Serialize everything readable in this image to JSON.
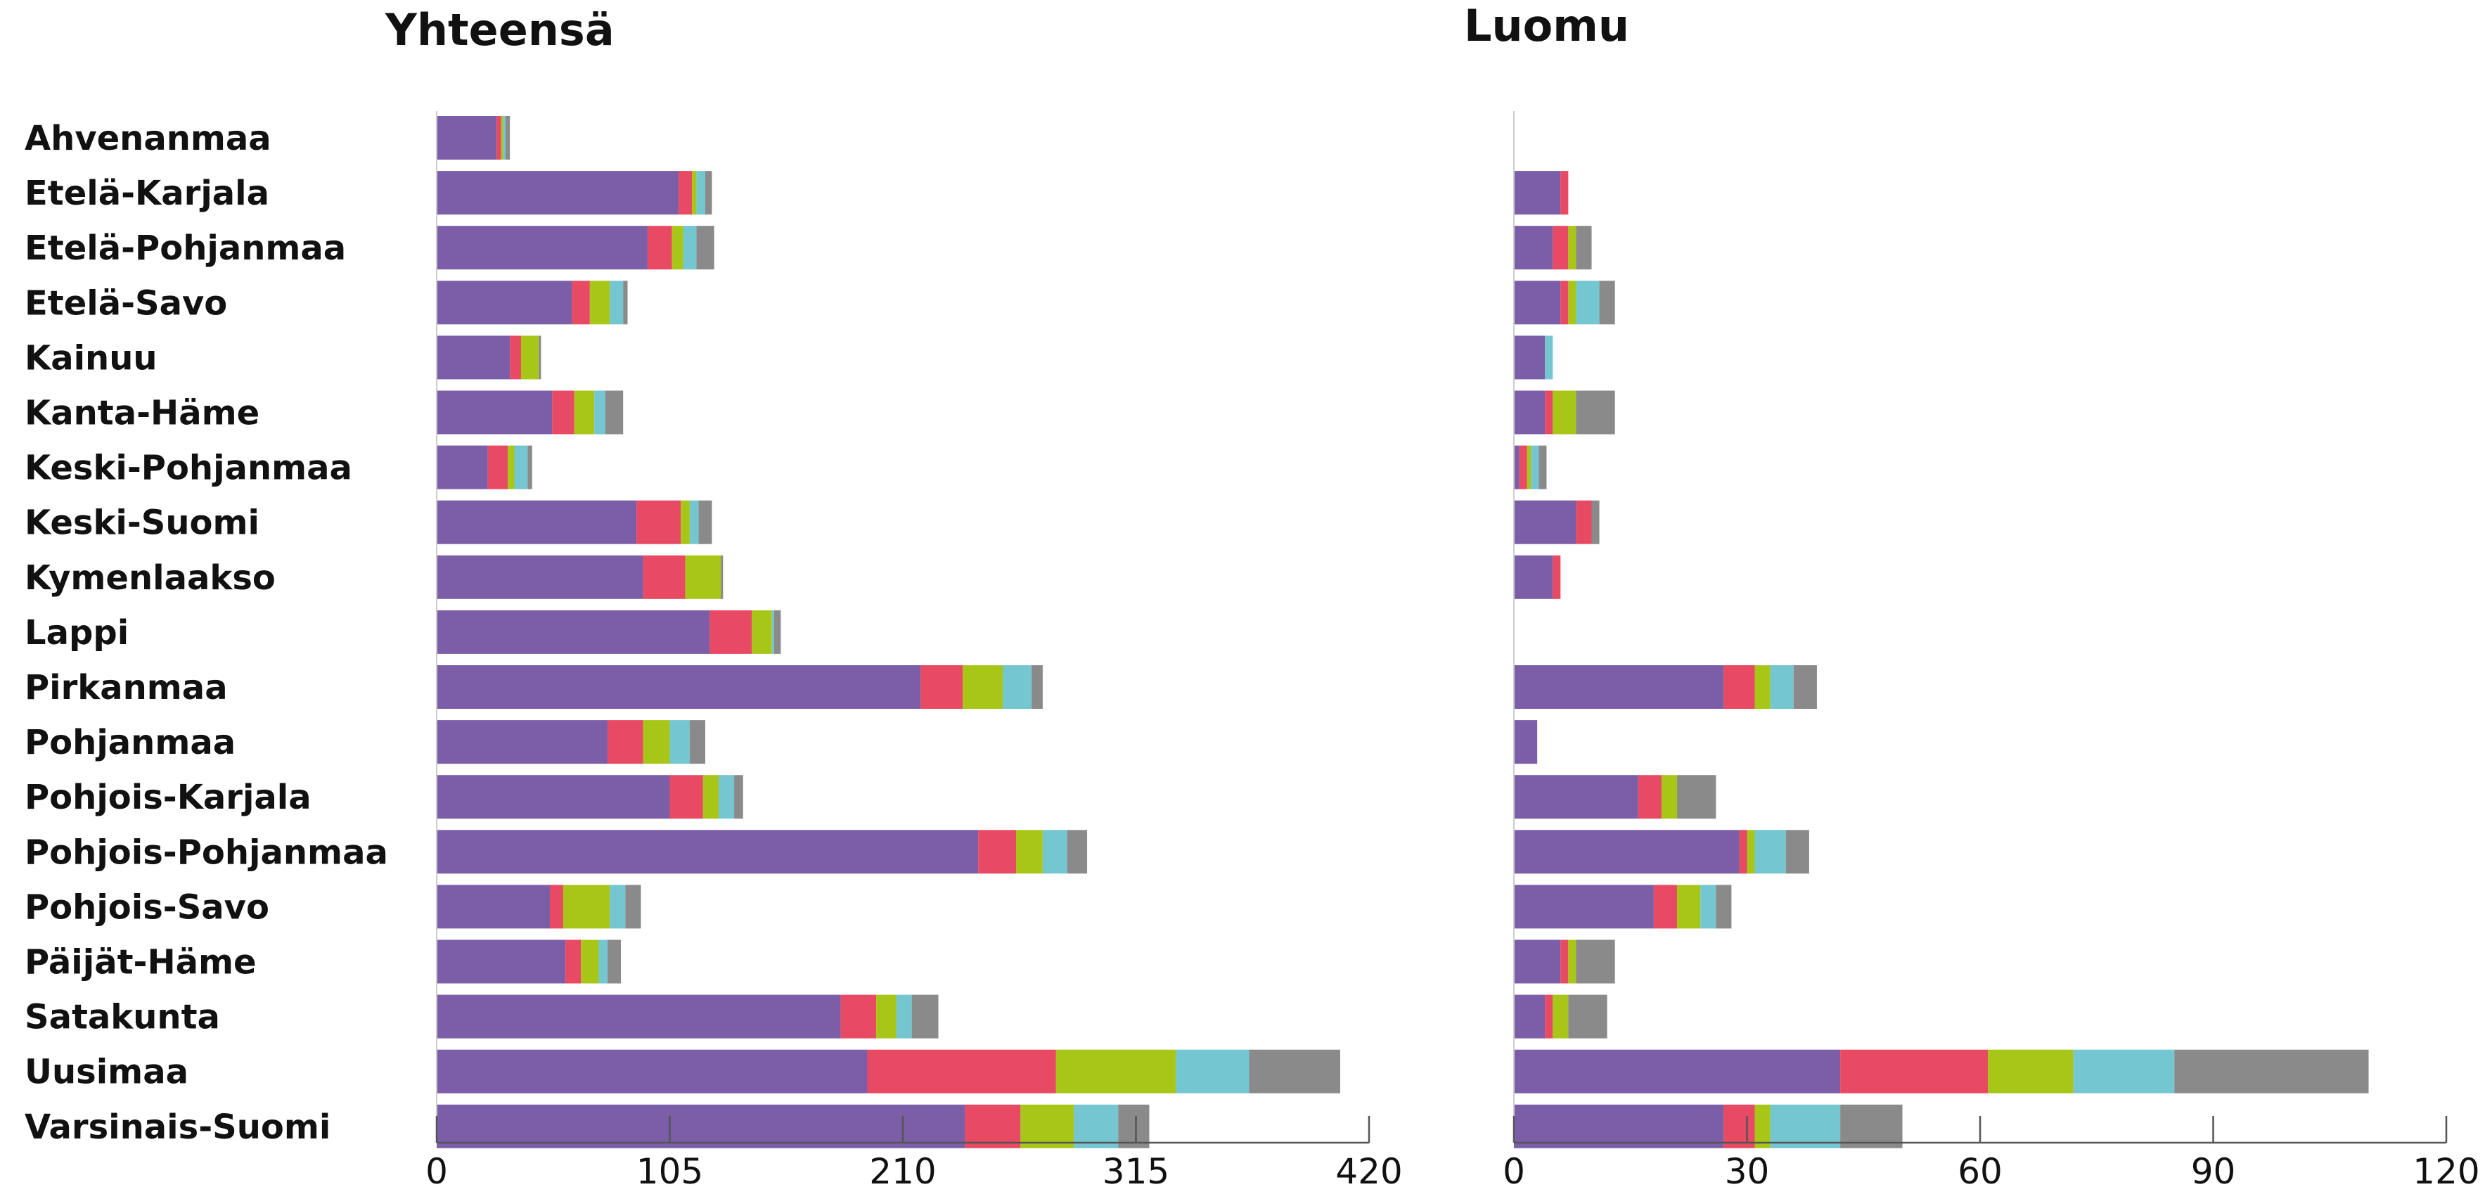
{
  "chart_data": [
    {
      "type": "bar",
      "orientation": "horizontal",
      "stacked": true,
      "title": "Yhteensä",
      "xlabel": "",
      "ylabel": "",
      "xlim": [
        0,
        420
      ],
      "xticks": [
        "0",
        "105",
        "210",
        "315",
        "420"
      ],
      "grid": false,
      "legend": "none",
      "categories": [
        "Ahvenanmaa",
        "Etelä-Karjala",
        "Etelä-Pohjanmaa",
        "Etelä-Savo",
        "Kainuu",
        "Kanta-Häme",
        "Keski-Pohjanmaa",
        "Keski-Suomi",
        "Kymenlaakso",
        "Lappi",
        "Pirkanmaa",
        "Pohjanmaa",
        "Pohjois-Karjala",
        "Pohjois-Pohjanmaa",
        "Pohjois-Savo",
        "Päijät-Häme",
        "Satakunta",
        "Uusimaa",
        "Varsinais-Suomi"
      ],
      "series": [
        {
          "color": "#7b5ea7",
          "values": [
            27,
            109,
            95,
            61,
            33,
            52,
            23,
            90,
            93,
            123,
            218,
            77,
            105,
            244,
            51,
            58,
            182,
            194,
            238
          ]
        },
        {
          "color": "#e84a63",
          "values": [
            2,
            6,
            11,
            8,
            5,
            10,
            9,
            20,
            19,
            19,
            19,
            16,
            15,
            17,
            6,
            7,
            16,
            85,
            25
          ]
        },
        {
          "color": "#a8c617",
          "values": [
            1,
            2,
            5,
            9,
            8,
            9,
            3,
            4,
            16,
            9,
            18,
            12,
            7,
            12,
            21,
            8,
            9,
            54,
            24
          ]
        },
        {
          "color": "#74c6d1",
          "values": [
            1,
            4,
            6,
            6,
            0,
            5,
            6,
            4,
            0,
            1,
            13,
            9,
            7,
            11,
            7,
            4,
            7,
            33,
            20
          ]
        },
        {
          "color": "#8a8a8a",
          "values": [
            2,
            3,
            8,
            2,
            1,
            8,
            2,
            6,
            1,
            3,
            5,
            7,
            4,
            9,
            7,
            6,
            12,
            41,
            14
          ]
        }
      ]
    },
    {
      "type": "bar",
      "orientation": "horizontal",
      "stacked": true,
      "title": "Luomu",
      "xlabel": "",
      "ylabel": "",
      "xlim": [
        0,
        120
      ],
      "xticks": [
        "0",
        "30",
        "60",
        "90",
        "120"
      ],
      "grid": false,
      "legend": "none",
      "categories": [
        "Ahvenanmaa",
        "Etelä-Karjala",
        "Etelä-Pohjanmaa",
        "Etelä-Savo",
        "Kainuu",
        "Kanta-Häme",
        "Keski-Pohjanmaa",
        "Keski-Suomi",
        "Kymenlaakso",
        "Lappi",
        "Pirkanmaa",
        "Pohjanmaa",
        "Pohjois-Karjala",
        "Pohjois-Pohjanmaa",
        "Pohjois-Savo",
        "Päijät-Häme",
        "Satakunta",
        "Uusimaa",
        "Varsinais-Suomi"
      ],
      "series": [
        {
          "color": "#7b5ea7",
          "values": [
            0,
            6,
            5,
            6,
            4,
            4,
            0.7,
            8,
            5,
            0,
            27,
            3,
            16,
            29,
            18,
            6,
            4,
            42,
            27
          ]
        },
        {
          "color": "#e84a63",
          "values": [
            0,
            1,
            2,
            1,
            0,
            1,
            1,
            2,
            1,
            0,
            4,
            0,
            3,
            1,
            3,
            1,
            1,
            19,
            4
          ]
        },
        {
          "color": "#a8c617",
          "values": [
            0,
            0,
            1,
            1,
            0,
            3,
            0.5,
            0,
            0,
            0,
            2,
            0,
            2,
            1,
            3,
            1,
            2,
            11,
            2
          ]
        },
        {
          "color": "#74c6d1",
          "values": [
            0,
            0,
            0,
            3,
            1,
            0,
            1,
            0,
            0,
            0,
            3,
            0,
            0,
            4,
            2,
            0,
            0,
            13,
            9
          ]
        },
        {
          "color": "#8a8a8a",
          "values": [
            0,
            0,
            2,
            2,
            0,
            5,
            1,
            1,
            0,
            0,
            3,
            0,
            5,
            3,
            2,
            5,
            5,
            25,
            8
          ]
        }
      ]
    }
  ]
}
